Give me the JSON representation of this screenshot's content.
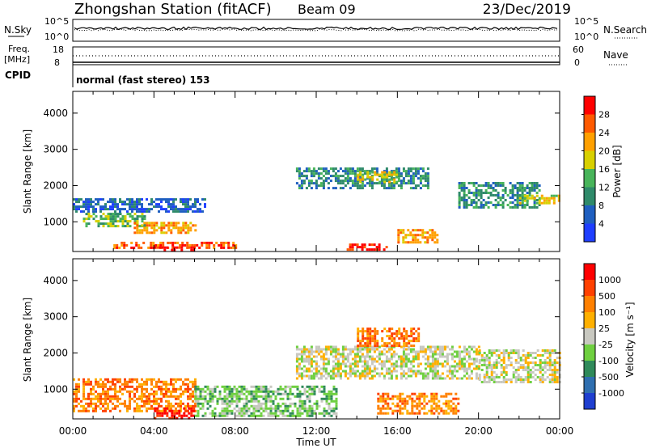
{
  "header": {
    "station": "Zhongshan Station (fitACF)",
    "beam": "Beam 09",
    "date": "23/Dec/2019"
  },
  "top_panels": {
    "nsky_label": "N.Sky",
    "nsky_ticks": [
      "10^5",
      "10^0"
    ],
    "nsearch_label": "N.Search",
    "nsearch_ticks": [
      "10^5",
      "10^0"
    ],
    "freq_label_1": "Freq.",
    "freq_label_2": "[MHz]",
    "freq_ticks": [
      "18",
      "8"
    ],
    "nave_label": "Nave",
    "nave_ticks": [
      "60",
      "0"
    ],
    "cpid_label": "CPID",
    "cpid_value": "normal (fast stereo) 153"
  },
  "chart_data": [
    {
      "type": "heatmap",
      "title": "",
      "xlabel": "Time UT",
      "ylabel": "Slant Range [km]",
      "x_ticks": [
        "00:00",
        "04:00",
        "08:00",
        "12:00",
        "16:00",
        "20:00",
        "00:00"
      ],
      "y_ticks": [
        "1000",
        "2000",
        "3000",
        "4000"
      ],
      "ylim": [
        180,
        4600
      ],
      "colorbar": {
        "label": "Power [dB]",
        "ticks": [
          "4",
          "8",
          "12",
          "16",
          "20",
          "24",
          "28"
        ],
        "colors": [
          "#1f3fff",
          "#1f5fc0",
          "#2f8a6a",
          "#48b45a",
          "#d8d000",
          "#ffa000",
          "#ff5a00",
          "#ff0000"
        ]
      },
      "regions": [
        {
          "t0": 0.0,
          "t1": 6.5,
          "r0": 1250,
          "r1": 1650,
          "level": 1
        },
        {
          "t0": 0.5,
          "t1": 3.5,
          "r0": 900,
          "r1": 1250,
          "level": 3
        },
        {
          "t0": 3.0,
          "t1": 6.0,
          "r0": 700,
          "r1": 1000,
          "level": 5
        },
        {
          "t0": 2.0,
          "t1": 8.0,
          "r0": 250,
          "r1": 450,
          "level": 6
        },
        {
          "t0": 4.0,
          "t1": 6.0,
          "r0": 200,
          "r1": 320,
          "level": 7
        },
        {
          "t0": 11.0,
          "t1": 17.5,
          "r0": 1900,
          "r1": 2500,
          "level": 2
        },
        {
          "t0": 14.0,
          "t1": 16.0,
          "r0": 2100,
          "r1": 2400,
          "level": 4
        },
        {
          "t0": 13.5,
          "t1": 15.5,
          "r0": 200,
          "r1": 400,
          "level": 7
        },
        {
          "t0": 16.0,
          "t1": 18.0,
          "r0": 450,
          "r1": 800,
          "level": 5
        },
        {
          "t0": 19.0,
          "t1": 23.0,
          "r0": 1400,
          "r1": 2100,
          "level": 2
        },
        {
          "t0": 22.0,
          "t1": 24.0,
          "r0": 1500,
          "r1": 1750,
          "level": 4
        }
      ]
    },
    {
      "type": "heatmap",
      "title": "",
      "xlabel": "Time UT",
      "ylabel": "Slant Range [km]",
      "x_ticks": [
        "00:00",
        "04:00",
        "08:00",
        "12:00",
        "16:00",
        "20:00",
        "00:00"
      ],
      "y_ticks": [
        "1000",
        "2000",
        "3000",
        "4000"
      ],
      "ylim": [
        180,
        4600
      ],
      "colorbar": {
        "label": "Velocity [m s⁻¹]",
        "ticks": [
          "1000",
          "500",
          "100",
          "25",
          "-25",
          "-100",
          "-500",
          "-1000"
        ],
        "colors": [
          "#1f3fd0",
          "#2f6fb0",
          "#2f8a5a",
          "#6fd040",
          "#c8c8c0",
          "#ffb000",
          "#ff8000",
          "#ff4000",
          "#ff0000"
        ]
      },
      "regions": [
        {
          "t0": 0.0,
          "t1": 6.0,
          "r0": 400,
          "r1": 1300,
          "level": 6
        },
        {
          "t0": 4.0,
          "t1": 6.0,
          "r0": 200,
          "r1": 500,
          "level": 8
        },
        {
          "t0": 6.0,
          "t1": 13.0,
          "r0": 250,
          "r1": 1100,
          "level": 3
        },
        {
          "t0": 11.0,
          "t1": 20.0,
          "r0": 1300,
          "r1": 2200,
          "level": 4
        },
        {
          "t0": 14.0,
          "t1": 17.0,
          "r0": 2200,
          "r1": 2700,
          "level": 6
        },
        {
          "t0": 15.0,
          "t1": 19.0,
          "r0": 300,
          "r1": 900,
          "level": 6
        },
        {
          "t0": 20.0,
          "t1": 24.0,
          "r0": 1200,
          "r1": 2100,
          "level": 4
        }
      ]
    }
  ]
}
